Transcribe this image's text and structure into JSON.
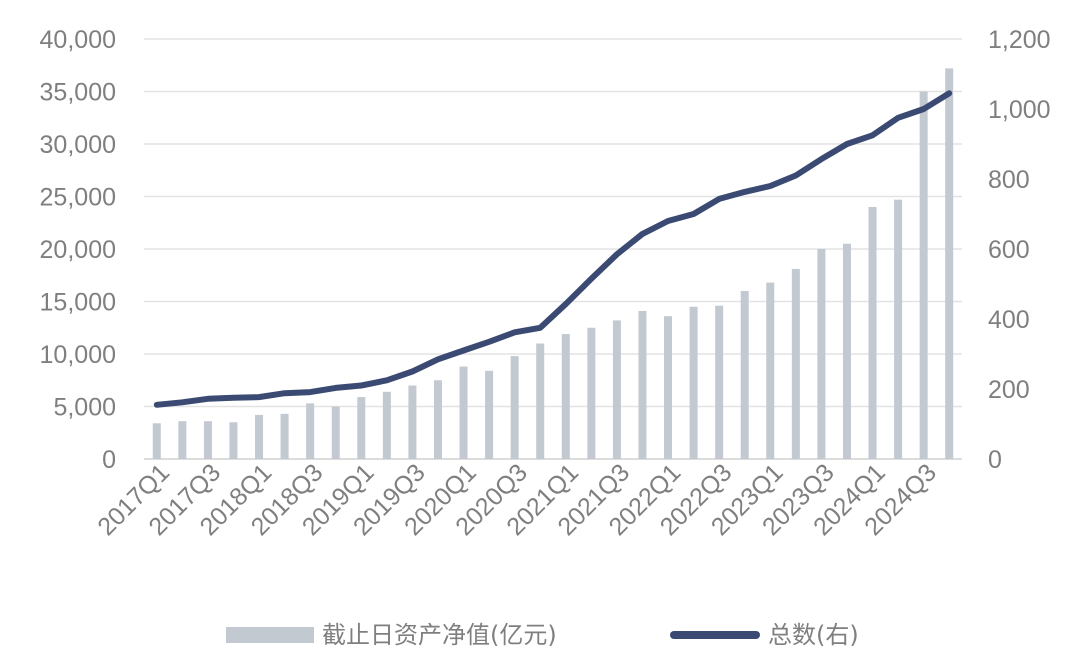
{
  "chart_data": {
    "type": "bar",
    "categories": [
      "2017Q1",
      "2017Q2",
      "2017Q3",
      "2017Q4",
      "2018Q1",
      "2018Q2",
      "2018Q3",
      "2018Q4",
      "2019Q1",
      "2019Q2",
      "2019Q3",
      "2019Q4",
      "2020Q1",
      "2020Q2",
      "2020Q3",
      "2020Q4",
      "2021Q1",
      "2021Q2",
      "2021Q3",
      "2021Q4",
      "2022Q1",
      "2022Q2",
      "2022Q3",
      "2022Q4",
      "2023Q1",
      "2023Q2",
      "2023Q3",
      "2023Q4",
      "2024Q1",
      "2024Q2",
      "2024Q3",
      "2024Q4"
    ],
    "tick_labels": [
      "2017Q1",
      "2017Q3",
      "2018Q1",
      "2018Q3",
      "2019Q1",
      "2019Q3",
      "2020Q1",
      "2020Q3",
      "2021Q1",
      "2021Q3",
      "2022Q1",
      "2022Q3",
      "2023Q1",
      "2023Q3",
      "2024Q1",
      "2024Q3"
    ],
    "series": [
      {
        "name": "截止日资产净值(亿元)",
        "type": "bar",
        "axis": "left",
        "color": "#c2c9d1",
        "values": [
          3400,
          3600,
          3600,
          3500,
          4200,
          4300,
          5300,
          5000,
          5900,
          6400,
          7000,
          7500,
          8800,
          8400,
          9800,
          11000,
          11900,
          12500,
          13200,
          14100,
          13600,
          14500,
          14600,
          16000,
          16800,
          18100,
          20000,
          20500,
          24000,
          24700,
          35000,
          37200
        ]
      },
      {
        "name": "总数(右)",
        "type": "line",
        "axis": "right",
        "color": "#3b4a72",
        "values": [
          155,
          162,
          172,
          175,
          177,
          188,
          191,
          203,
          210,
          225,
          250,
          285,
          310,
          335,
          362,
          375,
          443,
          515,
          585,
          643,
          680,
          700,
          743,
          763,
          780,
          810,
          857,
          900,
          925,
          975,
          1000,
          1045
        ]
      }
    ],
    "y_left": {
      "min": 0,
      "max": 40000,
      "step": 5000,
      "ticks": [
        "0",
        "5,000",
        "10,000",
        "15,000",
        "20,000",
        "25,000",
        "30,000",
        "35,000",
        "40,000"
      ]
    },
    "y_right": {
      "min": 0,
      "max": 1200,
      "step": 200,
      "ticks": [
        "0",
        "200",
        "400",
        "600",
        "800",
        "1,000",
        "1,200"
      ]
    },
    "grid": true,
    "legend_position": "bottom",
    "title": "",
    "xlabel": "",
    "ylabel": ""
  },
  "legend": {
    "bar_label": "截止日资产净值(亿元)",
    "line_label": "总数(右)"
  }
}
